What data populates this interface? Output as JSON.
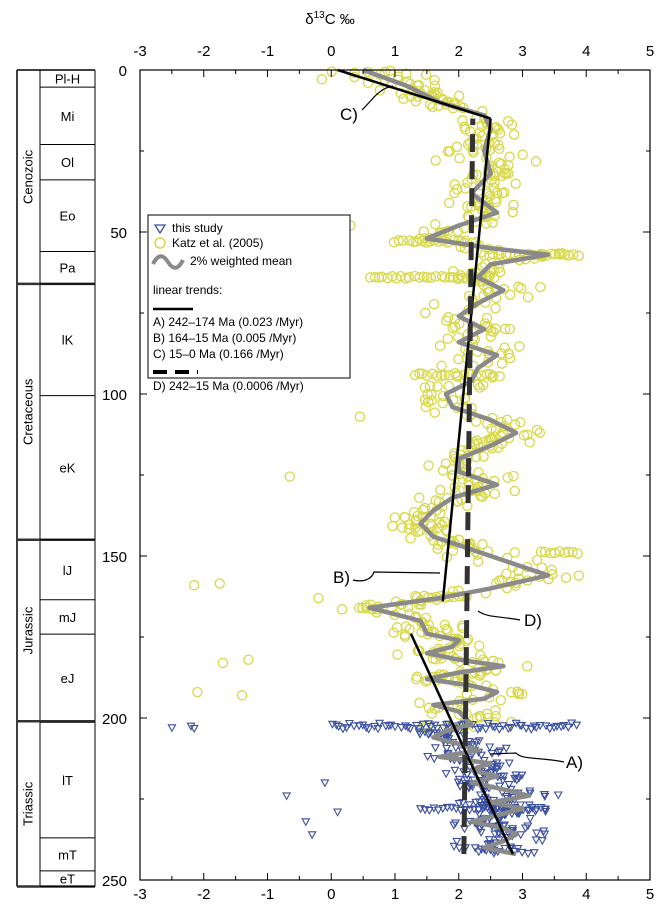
{
  "chart_data": {
    "type": "scatter",
    "title": "",
    "xlabel_prefix": "δ",
    "xlabel_sup": "13",
    "xlabel_suffix": "C ‰",
    "xlim": [
      -3,
      5
    ],
    "ylim": [
      0,
      250
    ],
    "y_inverted": true,
    "x_ticks": [
      "-3",
      "-2",
      "-1",
      "0",
      "1",
      "2",
      "3",
      "4",
      "5"
    ],
    "y_ticks": [
      "0",
      "50",
      "100",
      "150",
      "200",
      "250"
    ],
    "colors": {
      "this_study": "#3a4fa0",
      "katz": "#d8d84a",
      "weighted_mean": "#8a8a8a",
      "trend": "#000000"
    },
    "legend": {
      "placement": "upper-left",
      "this_study": "this study",
      "katz": "Katz et al. (2005)",
      "weighted_mean": "2% weighted mean",
      "linear_trends": "linear trends:",
      "trend_a": "A) 242–174 Ma (0.023 /Myr)",
      "trend_b": "B) 164–15 Ma (0.005 /Myr)",
      "trend_c": "C) 15–0 Ma (0.166 /Myr)",
      "trend_d": "D) 242–15 Ma (0.0006 /Myr)"
    },
    "trend_lines": [
      {
        "label": "A)",
        "style": "solid",
        "x": [
          1.25,
          2.85
        ],
        "y": [
          174,
          242
        ]
      },
      {
        "label": "B)",
        "style": "solid",
        "x": [
          1.75,
          2.5
        ],
        "y": [
          164,
          15
        ]
      },
      {
        "label": "C)",
        "style": "solid",
        "x": [
          0.1,
          2.5
        ],
        "y": [
          0,
          15
        ]
      },
      {
        "label": "D)",
        "style": "dashed",
        "x": [
          2.08,
          2.22
        ],
        "y": [
          242,
          15
        ]
      }
    ],
    "weighted_mean": {
      "age": [
        0,
        5,
        10,
        14,
        18,
        25,
        32,
        38,
        44,
        48,
        52,
        55,
        57,
        60,
        64,
        68,
        72,
        76,
        80,
        84,
        88,
        92,
        96,
        100,
        104,
        108,
        112,
        116,
        120,
        124,
        128,
        132,
        136,
        140,
        144,
        148,
        152,
        156,
        160,
        163,
        166,
        170,
        174,
        176,
        178,
        180,
        182,
        184,
        186,
        188,
        190,
        192,
        194,
        196,
        198,
        200,
        202,
        204,
        206,
        208,
        210,
        212,
        214,
        216,
        218,
        220,
        222,
        224,
        226,
        228,
        230,
        232,
        234,
        236,
        238,
        240,
        242
      ],
      "d13c": [
        0.5,
        1.2,
        1.7,
        2.4,
        2.5,
        2.4,
        2.5,
        2.2,
        2.6,
        2.0,
        1.5,
        2.5,
        3.4,
        2.5,
        2.3,
        2.7,
        2.3,
        2.0,
        2.4,
        2.0,
        2.6,
        2.3,
        2.2,
        1.8,
        1.9,
        2.5,
        2.9,
        2.5,
        2.0,
        2.0,
        2.6,
        1.9,
        1.6,
        1.4,
        1.6,
        2.2,
        2.8,
        3.4,
        2.5,
        1.7,
        0.6,
        1.4,
        1.5,
        2.0,
        1.9,
        1.5,
        2.0,
        2.7,
        2.0,
        1.5,
        2.2,
        2.6,
        2.4,
        1.6,
        2.0,
        2.1,
        2.2,
        1.8,
        1.6,
        2.0,
        2.3,
        1.7,
        2.5,
        2.2,
        2.6,
        2.2,
        2.7,
        3.1,
        2.5,
        3.0,
        2.6,
        2.2,
        2.7,
        2.9,
        2.7,
        2.4,
        2.9
      ]
    }
  },
  "stratigraphy": {
    "eras": [
      {
        "name": "Cenozoic",
        "top": 0,
        "bottom": 66
      },
      {
        "name": "Cretaceous",
        "top": 66,
        "bottom": 145
      },
      {
        "name": "Jurassic",
        "top": 145,
        "bottom": 201
      },
      {
        "name": "Triassic",
        "top": 201,
        "bottom": 252
      }
    ],
    "epochs": [
      {
        "name": "Pl-H",
        "top": 0,
        "bottom": 5.3
      },
      {
        "name": "Mi",
        "top": 5.3,
        "bottom": 23
      },
      {
        "name": "Ol",
        "top": 23,
        "bottom": 33.9
      },
      {
        "name": "Eo",
        "top": 33.9,
        "bottom": 56
      },
      {
        "name": "Pa",
        "top": 56,
        "bottom": 66
      },
      {
        "name": "lK",
        "top": 66,
        "bottom": 100.5
      },
      {
        "name": "eK",
        "top": 100.5,
        "bottom": 145
      },
      {
        "name": "lJ",
        "top": 145,
        "bottom": 163.5
      },
      {
        "name": "mJ",
        "top": 163.5,
        "bottom": 174.1
      },
      {
        "name": "eJ",
        "top": 174.1,
        "bottom": 201.3
      },
      {
        "name": "lT",
        "top": 201.3,
        "bottom": 237
      },
      {
        "name": "mT",
        "top": 237,
        "bottom": 247.2
      },
      {
        "name": "eT",
        "top": 247.2,
        "bottom": 252
      }
    ]
  }
}
